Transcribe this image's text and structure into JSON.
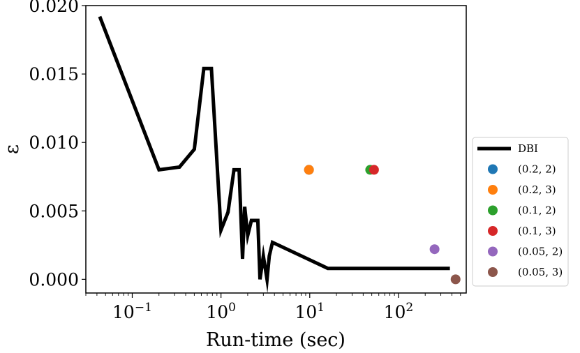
{
  "chart_data": {
    "type": "line",
    "title": "",
    "xlabel": "Run-time (sec)",
    "ylabel": "ε",
    "xscale": "log",
    "xlim": [
      0.03,
      580
    ],
    "ylim": [
      -0.001,
      0.02
    ],
    "x_ticks": [
      {
        "value": 0.1,
        "base": "10",
        "exp": "−1"
      },
      {
        "value": 1,
        "base": "10",
        "exp": "0"
      },
      {
        "value": 10,
        "base": "10",
        "exp": "1"
      },
      {
        "value": 100,
        "base": "10",
        "exp": "2"
      }
    ],
    "y_ticks": [
      {
        "value": 0.0,
        "label": "0.000"
      },
      {
        "value": 0.005,
        "label": "0.005"
      },
      {
        "value": 0.01,
        "label": "0.010"
      },
      {
        "value": 0.015,
        "label": "0.015"
      },
      {
        "value": 0.02,
        "label": "0.020"
      }
    ],
    "line_series": {
      "name": "DBI",
      "color": "#000000",
      "x": [
        0.043,
        0.2,
        0.34,
        0.5,
        0.64,
        0.78,
        1.0,
        1.2,
        1.4,
        1.6,
        1.75,
        1.85,
        2.0,
        2.2,
        2.6,
        2.75,
        3.0,
        3.3,
        3.5,
        3.8,
        16,
        380
      ],
      "y": [
        0.0192,
        0.008,
        0.0082,
        0.0095,
        0.0154,
        0.0154,
        0.0036,
        0.0049,
        0.008,
        0.008,
        0.0015,
        0.0053,
        0.0032,
        0.0043,
        0.0043,
        0.0,
        0.0017,
        0.0,
        0.0017,
        0.0027,
        0.0008,
        0.0008
      ]
    },
    "scatter_series": [
      {
        "name": "(0.2, 2)",
        "color": "#1f77b4",
        "x": [
          9.8
        ],
        "y": [
          0.008
        ]
      },
      {
        "name": "(0.2, 3)",
        "color": "#ff7f0e",
        "x": [
          9.8
        ],
        "y": [
          0.008
        ]
      },
      {
        "name": "(0.1, 2)",
        "color": "#2ca02c",
        "x": [
          48
        ],
        "y": [
          0.008
        ]
      },
      {
        "name": "(0.1, 3)",
        "color": "#d62728",
        "x": [
          53
        ],
        "y": [
          0.008
        ]
      },
      {
        "name": "(0.05, 2)",
        "color": "#9467bd",
        "x": [
          255
        ],
        "y": [
          0.0022
        ]
      },
      {
        "name": "(0.05, 3)",
        "color": "#8c564b",
        "x": [
          440
        ],
        "y": [
          0.0
        ]
      }
    ],
    "grid": false,
    "legend_position": "right"
  }
}
